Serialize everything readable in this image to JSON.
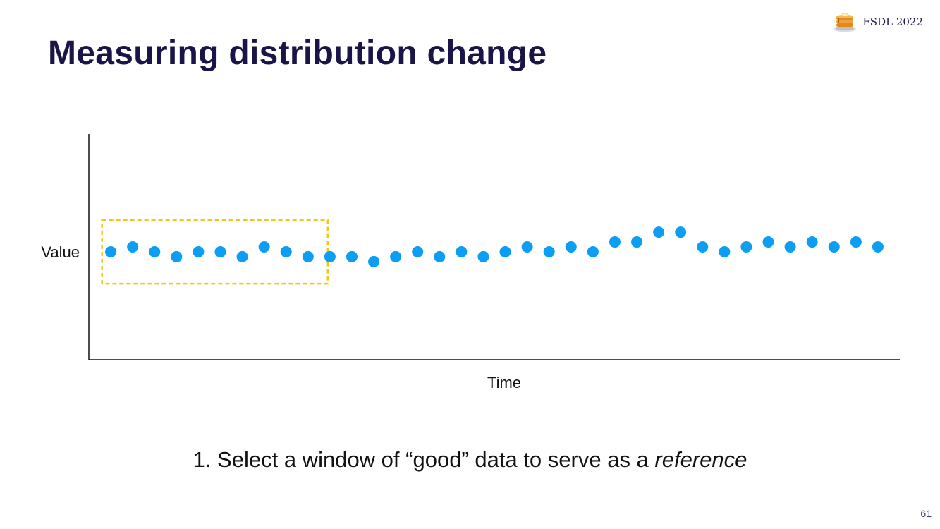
{
  "slide": {
    "title": "Measuring distribution change",
    "brand_label": "FSDL 2022",
    "brand_icon": "pancakes-icon",
    "caption_prefix": "1. Select a window of “good” data to serve as a ",
    "caption_emphasis": "reference",
    "page_number": "61"
  },
  "colors": {
    "title": "#1a1548",
    "points": "#0b9ef2",
    "window_box": "#f5c518",
    "axis": "#111111"
  },
  "chart_data": {
    "type": "scatter",
    "title": "",
    "xlabel": "Time",
    "ylabel": "Value",
    "x_tick_labels": false,
    "y_tick_labels": false,
    "grid": false,
    "xlim": [
      0,
      37
    ],
    "ylim": [
      -22,
      24
    ],
    "x": [
      1,
      2,
      3,
      4,
      5,
      6,
      7,
      8,
      9,
      10,
      11,
      12,
      13,
      14,
      15,
      16,
      17,
      18,
      19,
      20,
      21,
      22,
      23,
      24,
      25,
      26,
      27,
      28,
      29,
      30,
      31,
      32,
      33,
      34,
      35,
      36
    ],
    "y": [
      0,
      1,
      0,
      -1,
      0,
      0,
      -1,
      1,
      0,
      -1,
      -1,
      -1,
      -2,
      -1,
      0,
      -1,
      0,
      -1,
      0,
      1,
      0,
      1,
      0,
      2,
      2,
      4,
      4,
      1,
      0,
      1,
      2,
      1,
      2,
      1,
      2,
      1
    ],
    "annotations": [
      {
        "type": "dashed-box",
        "label": "reference window",
        "x_range": [
          0.6,
          10.9
        ],
        "y_range": [
          -6.5,
          6.5
        ]
      }
    ]
  }
}
